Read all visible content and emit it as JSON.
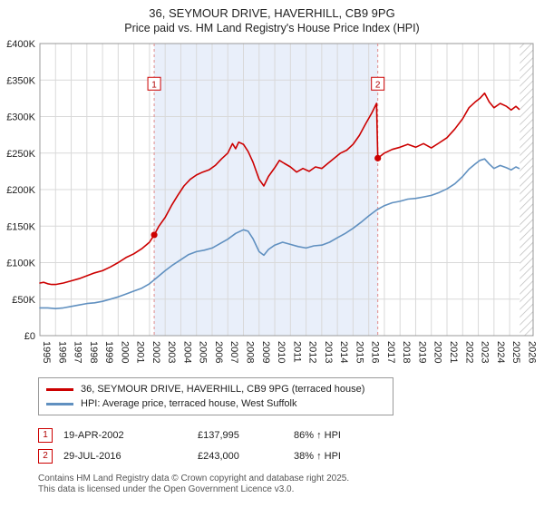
{
  "header": {
    "title": "36, SEYMOUR DRIVE, HAVERHILL, CB9 9PG",
    "subtitle": "Price paid vs. HM Land Registry's House Price Index (HPI)"
  },
  "chart_data": {
    "type": "line",
    "title": "36, SEYMOUR DRIVE, HAVERHILL, CB9 9PG — Price paid vs. HPI",
    "unit": "GBP thousands",
    "xlim": [
      1995,
      2026.5
    ],
    "ylim": [
      0,
      400
    ],
    "grid": true,
    "x_tick_years": [
      1995,
      1996,
      1997,
      1998,
      1999,
      2000,
      2001,
      2002,
      2003,
      2004,
      2005,
      2006,
      2007,
      2008,
      2009,
      2010,
      2011,
      2012,
      2013,
      2014,
      2015,
      2016,
      2017,
      2018,
      2019,
      2020,
      2021,
      2022,
      2023,
      2024,
      2025,
      2026
    ],
    "y_ticks": [
      {
        "v": 0,
        "label": "£0"
      },
      {
        "v": 50,
        "label": "£50K"
      },
      {
        "v": 100,
        "label": "£100K"
      },
      {
        "v": 150,
        "label": "£150K"
      },
      {
        "v": 200,
        "label": "£200K"
      },
      {
        "v": 250,
        "label": "£250K"
      },
      {
        "v": 300,
        "label": "£300K"
      },
      {
        "v": 350,
        "label": "£350K"
      },
      {
        "v": 400,
        "label": "£400K"
      }
    ],
    "shaded_region": [
      2002.3,
      2016.58
    ],
    "hatch_region": [
      2025.65,
      2026.5
    ],
    "series": [
      {
        "name": "36, SEYMOUR DRIVE, HAVERHILL, CB9 9PG (terraced house)",
        "color": "#cc0000",
        "x": [
          1995.0,
          1995.25,
          1995.5,
          1995.75,
          1996.0,
          1996.5,
          1997.0,
          1997.5,
          1998.0,
          1998.5,
          1999.0,
          1999.5,
          2000.0,
          2000.5,
          2001.0,
          2001.5,
          2002.0,
          2002.3,
          2002.6,
          2003.0,
          2003.4,
          2003.8,
          2004.2,
          2004.6,
          2005.0,
          2005.4,
          2005.8,
          2006.2,
          2006.6,
          2007.0,
          2007.3,
          2007.5,
          2007.7,
          2008.0,
          2008.3,
          2008.6,
          2009.0,
          2009.3,
          2009.6,
          2010.0,
          2010.3,
          2010.6,
          2011.0,
          2011.4,
          2011.8,
          2012.2,
          2012.6,
          2013.0,
          2013.4,
          2013.8,
          2014.2,
          2014.6,
          2015.0,
          2015.4,
          2015.8,
          2016.2,
          2016.5,
          2016.58,
          2017.0,
          2017.5,
          2018.0,
          2018.5,
          2019.0,
          2019.5,
          2020.0,
          2020.5,
          2021.0,
          2021.5,
          2022.0,
          2022.4,
          2022.8,
          2023.1,
          2023.4,
          2023.7,
          2024.0,
          2024.4,
          2024.8,
          2025.1,
          2025.4,
          2025.6
        ],
        "y": [
          72,
          73,
          71,
          70,
          70,
          72,
          75,
          78,
          82,
          86,
          89,
          94,
          100,
          107,
          112,
          119,
          128,
          138,
          150,
          162,
          178,
          192,
          205,
          214,
          220,
          224,
          227,
          233,
          242,
          250,
          263,
          256,
          265,
          262,
          252,
          238,
          214,
          205,
          218,
          230,
          240,
          236,
          231,
          224,
          229,
          225,
          231,
          229,
          236,
          243,
          250,
          254,
          262,
          274,
          290,
          305,
          318,
          243,
          250,
          255,
          258,
          262,
          258,
          263,
          257,
          264,
          271,
          283,
          297,
          312,
          320,
          325,
          332,
          320,
          312,
          318,
          314,
          309,
          314,
          310
        ]
      },
      {
        "name": "HPI: Average price, terraced house, West Suffolk",
        "color": "#6090c0",
        "x": [
          1995.0,
          1995.5,
          1996.0,
          1996.5,
          1997.0,
          1997.5,
          1998.0,
          1998.5,
          1999.0,
          1999.5,
          2000.0,
          2000.5,
          2001.0,
          2001.5,
          2002.0,
          2002.5,
          2003.0,
          2003.5,
          2004.0,
          2004.5,
          2005.0,
          2005.5,
          2006.0,
          2006.5,
          2007.0,
          2007.5,
          2008.0,
          2008.3,
          2008.6,
          2009.0,
          2009.3,
          2009.6,
          2010.0,
          2010.5,
          2011.0,
          2011.5,
          2012.0,
          2012.5,
          2013.0,
          2013.5,
          2014.0,
          2014.5,
          2015.0,
          2015.5,
          2016.0,
          2016.5,
          2017.0,
          2017.5,
          2018.0,
          2018.5,
          2019.0,
          2019.5,
          2020.0,
          2020.5,
          2021.0,
          2021.5,
          2022.0,
          2022.4,
          2022.8,
          2023.1,
          2023.4,
          2023.7,
          2024.0,
          2024.4,
          2024.8,
          2025.1,
          2025.4,
          2025.6
        ],
        "y": [
          38,
          38,
          37,
          38,
          40,
          42,
          44,
          45,
          47,
          50,
          53,
          57,
          61,
          65,
          71,
          80,
          89,
          97,
          104,
          111,
          115,
          117,
          120,
          126,
          132,
          140,
          145,
          143,
          133,
          115,
          110,
          118,
          124,
          128,
          125,
          122,
          120,
          123,
          124,
          128,
          134,
          140,
          147,
          155,
          164,
          172,
          178,
          182,
          184,
          187,
          188,
          190,
          192,
          196,
          201,
          208,
          218,
          228,
          235,
          240,
          242,
          235,
          229,
          233,
          230,
          227,
          231,
          229
        ]
      }
    ],
    "sales": [
      {
        "n": "1",
        "date": "19-APR-2002",
        "price": "£137,995",
        "hpi": "86% ↑ HPI",
        "x": 2002.3,
        "y": 137.995
      },
      {
        "n": "2",
        "date": "29-JUL-2016",
        "price": "£243,000",
        "hpi": "38% ↑ HPI",
        "x": 2016.58,
        "y": 243
      }
    ],
    "colors": {
      "grid": "#d9d9d9",
      "border": "#999999",
      "shade": "#e9effa",
      "dashed_line": "#e08a8a",
      "marker_box_border": "#cc0000"
    },
    "legend_position": "bottom"
  },
  "legend": {
    "items": [
      {
        "label": "36, SEYMOUR DRIVE, HAVERHILL, CB9 9PG (terraced house)",
        "color": "#cc0000"
      },
      {
        "label": "HPI: Average price, terraced house, West Suffolk",
        "color": "#6090c0"
      }
    ]
  },
  "footer": {
    "line1": "Contains HM Land Registry data © Crown copyright and database right 2025.",
    "line2": "This data is licensed under the Open Government Licence v3.0."
  }
}
